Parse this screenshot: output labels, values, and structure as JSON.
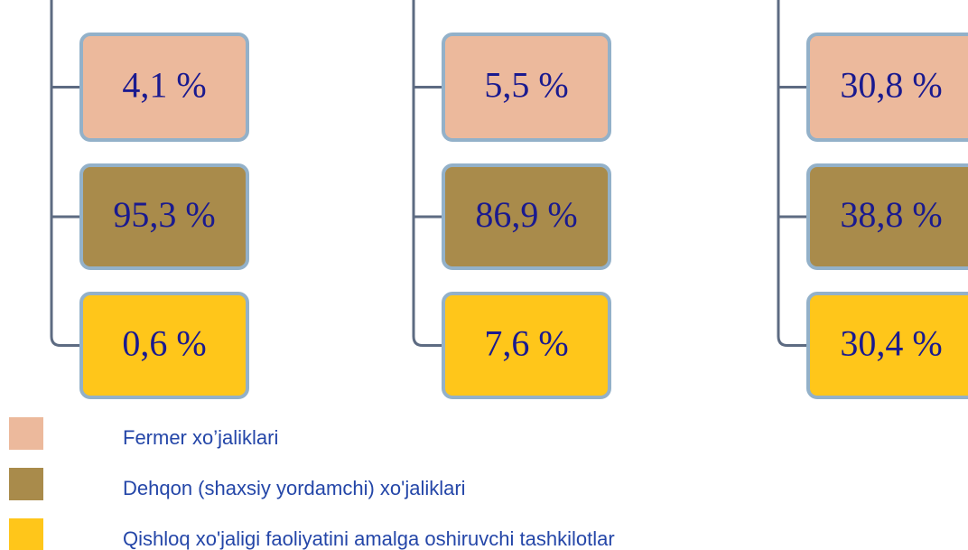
{
  "columns": [
    {
      "boxes": [
        "4,1 %",
        "95,3 %",
        "0,6 %"
      ]
    },
    {
      "boxes": [
        "5,5 %",
        "86,9 %",
        "7,6 %"
      ]
    },
    {
      "boxes": [
        "30,8 %",
        "38,8 %",
        "30,4 %"
      ]
    }
  ],
  "legend": [
    {
      "label": "Fermer xo’jaliklari",
      "color": "#ecb99c"
    },
    {
      "label": "Dehqon (shaxsiy yordamchi) xo'jaliklari",
      "color": "#a98b4b"
    },
    {
      "label": "Qishloq xo'jaligi faoliyatini amalga oshiruvchi tashkilotlar",
      "color": "#ffc61a"
    }
  ]
}
